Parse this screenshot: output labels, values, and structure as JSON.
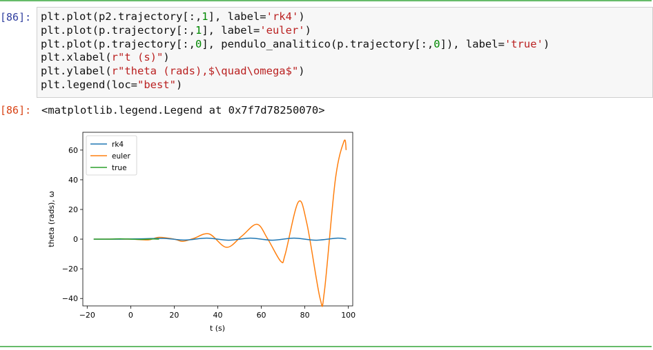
{
  "cell": {
    "in_prompt": "[86]:",
    "out_prompt": "[86]:",
    "code_lines": [
      [
        {
          "t": "plt.plot(p2.trajectory[:,"
        },
        {
          "t": "1",
          "c": "n"
        },
        {
          "t": "], label="
        },
        {
          "t": "'rk4'",
          "c": "s"
        },
        {
          "t": ")"
        }
      ],
      [
        {
          "t": "plt.plot(p.trajectory[:,"
        },
        {
          "t": "1",
          "c": "n"
        },
        {
          "t": "], label="
        },
        {
          "t": "'euler'",
          "c": "s"
        },
        {
          "t": ")"
        }
      ],
      [
        {
          "t": "plt.plot(p.trajectory[:,"
        },
        {
          "t": "0",
          "c": "n"
        },
        {
          "t": "], pendulo_analitico(p.trajectory[:,"
        },
        {
          "t": "0",
          "c": "n"
        },
        {
          "t": "]), label="
        },
        {
          "t": "'true'",
          "c": "s"
        },
        {
          "t": ")"
        }
      ],
      [
        {
          "t": "plt.xlabel("
        },
        {
          "t": "r\"t (s)\"",
          "c": "s"
        },
        {
          "t": ")"
        }
      ],
      [
        {
          "t": "plt.ylabel("
        },
        {
          "t": "r\"theta (rads),$\\quad\\omega$\"",
          "c": "s"
        },
        {
          "t": ")"
        }
      ],
      [
        {
          "t": "plt.legend(loc="
        },
        {
          "t": "\"best\"",
          "c": "s"
        },
        {
          "t": ")"
        }
      ]
    ],
    "output_text": "<matplotlib.legend.Legend at 0x7f7d78250070>"
  },
  "colors": {
    "rk4": "#1f77b4",
    "euler": "#ff7f0e",
    "true": "#2ca02c"
  },
  "chart_data": {
    "type": "line",
    "xlabel": "t (s)",
    "ylabel": "theta (rads),  ω",
    "xlim": [
      -22,
      102
    ],
    "ylim": [
      -45,
      72
    ],
    "xticks": [
      -20,
      0,
      20,
      40,
      60,
      80,
      100
    ],
    "yticks": [
      -40,
      -20,
      0,
      20,
      40,
      60
    ],
    "xtick_labels": [
      "−20",
      "0",
      "20",
      "40",
      "60",
      "80",
      "100"
    ],
    "ytick_labels": [
      "−40",
      "−20",
      "0",
      "20",
      "40",
      "60"
    ],
    "legend": {
      "loc": "upper left"
    },
    "series": [
      {
        "name": "rk4",
        "x": [
          -17,
          -5,
          5,
          15,
          25,
          35,
          45,
          55,
          65,
          75,
          85,
          95,
          99
        ],
        "y": [
          0,
          0,
          0.2,
          0.5,
          -0.6,
          0.7,
          -0.7,
          0.7,
          -0.7,
          0.7,
          -0.7,
          0.7,
          0
        ]
      },
      {
        "name": "euler",
        "x": [
          -17,
          0,
          8,
          13,
          20,
          24,
          29,
          36,
          44,
          51,
          58,
          63,
          69,
          71,
          77,
          81,
          87,
          89,
          94,
          98,
          99
        ],
        "y": [
          0,
          0,
          -0.5,
          1.2,
          0,
          -1.5,
          0.5,
          3.5,
          -5.5,
          2,
          10,
          0,
          -15,
          -10,
          25,
          10,
          -40,
          -35,
          40,
          66,
          60
        ]
      },
      {
        "name": "true",
        "x": [
          -17,
          -10,
          -5,
          0,
          5,
          10,
          13
        ],
        "y": [
          0,
          0,
          0.2,
          0,
          -0.2,
          0.1,
          0
        ]
      }
    ]
  }
}
